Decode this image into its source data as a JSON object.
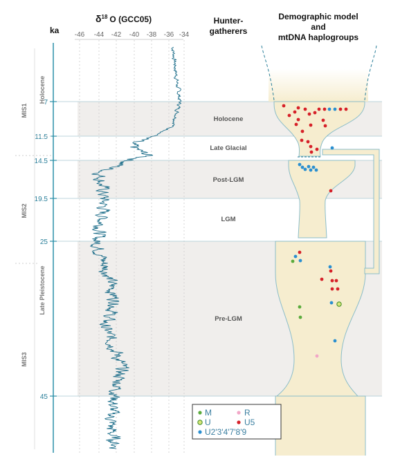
{
  "header": {
    "ka_label": "ka",
    "delta_prefix": "δ",
    "delta_sup": "18",
    "delta_suffix": "O (GCC05)",
    "hunter_line1": "Hunter-",
    "hunter_line2": "gatherers",
    "demo_line1": "Demographic model",
    "demo_line2": "and",
    "demo_line3": "mtDNA haplogroups"
  },
  "x_ticks": [
    "-46",
    "-44",
    "-42",
    "-40",
    "-38",
    "-36",
    "-34"
  ],
  "ka_ticks": [
    "7",
    "11.5",
    "14.5",
    "19.5",
    "25",
    "45"
  ],
  "periods": [
    "Holocene",
    "Late Glacial",
    "Post-LGM",
    "LGM",
    "Pre-LGM"
  ],
  "stages": [
    "MIS1",
    "MIS2",
    "MIS3"
  ],
  "epochs": [
    "Holocene",
    "Late Pleistocene"
  ],
  "legend": {
    "m": "M",
    "r": "R",
    "u": "U",
    "u5": "U5",
    "u2": "U2'3'4'7'8'9"
  },
  "colors": {
    "curve": "#1f6f8b",
    "band": "#f0eeec",
    "bottle": "#f6edcf",
    "bottle_stroke": "#8bbdc9",
    "haplo_M": "#5aab3c",
    "haplo_R": "#f2a7c7",
    "haplo_U": "#d8e67a",
    "haplo_U5": "#d62028",
    "haplo_U2": "#2a8fd0"
  }
}
